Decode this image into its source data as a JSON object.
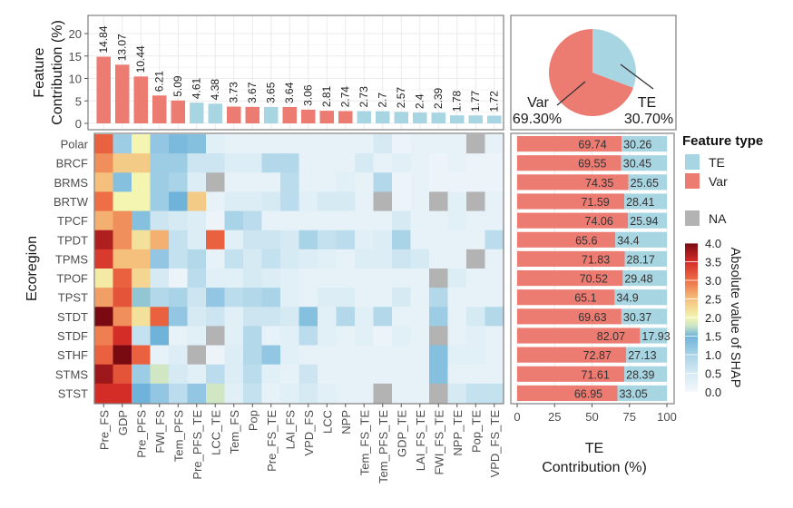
{
  "chart_data": [
    {
      "type": "bar",
      "ylabel": "Feature Contribution (%)",
      "ylabel_lines": [
        "Feature",
        "Contribution (%)"
      ],
      "ylim": [
        0,
        22
      ],
      "yticks": [
        "0",
        "5",
        "10",
        "15",
        "20"
      ],
      "grid": true,
      "categories": [
        "Pre_FS",
        "GDP",
        "Pre_PFS",
        "FWI_FS",
        "Tem_PFS",
        "Pre_PFS_TE",
        "LCC_TE",
        "Tem_FS",
        "Pop",
        "Pre_FS_TE",
        "LAI_FS",
        "VPD_FS",
        "LCC",
        "NPP",
        "Tem_FS_TE",
        "Tem_PFS_TE",
        "GDP_TE",
        "LAI_FS_TE",
        "FWI_FS_TE",
        "NPP_TE",
        "Pop_TE",
        "VPD_FS_TE"
      ],
      "values": [
        14.84,
        13.07,
        10.44,
        6.21,
        5.09,
        4.61,
        4.38,
        3.73,
        3.67,
        3.65,
        3.64,
        3.06,
        2.81,
        2.74,
        2.73,
        2.7,
        2.57,
        2.4,
        2.39,
        1.78,
        1.77,
        1.72
      ],
      "labels": [
        "14.84",
        "13.07",
        "10.44",
        "6.21",
        "5.09",
        "4.61",
        "4.38",
        "3.73",
        "3.67",
        "3.65",
        "3.64",
        "3.06",
        "2.81",
        "2.74",
        "2.73",
        "2.7",
        "2.57",
        "2.4",
        "2.39",
        "1.78",
        "1.77",
        "1.72"
      ],
      "feature_type": [
        "Var",
        "Var",
        "Var",
        "Var",
        "Var",
        "TE",
        "TE",
        "Var",
        "Var",
        "TE",
        "Var",
        "Var",
        "Var",
        "Var",
        "TE",
        "TE",
        "TE",
        "TE",
        "TE",
        "TE",
        "TE",
        "TE"
      ]
    },
    {
      "type": "pie",
      "slices": [
        {
          "name": "TE",
          "value": 30.7,
          "label": "30.70%"
        },
        {
          "name": "Var",
          "value": 69.3,
          "label": "69.30%"
        }
      ]
    },
    {
      "type": "heatmap",
      "ylabel": "Ecoregion",
      "rows": [
        "Polar",
        "BRCF",
        "BRMS",
        "BRTW",
        "TPCF",
        "TPDT",
        "TPMS",
        "TPOF",
        "TPST",
        "STDT",
        "STDF",
        "STHF",
        "STMS",
        "STST"
      ],
      "columns": [
        "Pre_FS",
        "GDP",
        "Pre_PFS",
        "FWI_FS",
        "Tem_PFS",
        "Pre_PFS_TE",
        "LCC_TE",
        "Tem_FS",
        "Pop",
        "Pre_FS_TE",
        "LAI_FS",
        "VPD_FS",
        "LCC",
        "NPP",
        "Tem_FS_TE",
        "Tem_PFS_TE",
        "GDP_TE",
        "LAI_FS_TE",
        "FWI_FS_TE",
        "NPP_TE",
        "Pop_TE",
        "VPD_FS_TE"
      ],
      "values": [
        [
          3.1,
          1.1,
          2.0,
          1.2,
          1.4,
          1.3,
          0.3,
          0.2,
          0.2,
          0.2,
          0.2,
          0.2,
          0.2,
          0.2,
          0.2,
          0.5,
          0.1,
          0.2,
          0.2,
          0.2,
          null,
          0.2
        ],
        [
          2.8,
          2.4,
          2.4,
          1.1,
          1.1,
          0.6,
          0.6,
          0.4,
          0.4,
          0.9,
          0.9,
          0.2,
          0.2,
          0.2,
          0.5,
          0.2,
          0.3,
          0.2,
          0.1,
          0.2,
          0.1,
          0.1
        ],
        [
          2.5,
          1.3,
          2.0,
          1.1,
          1.0,
          0.4,
          null,
          0.2,
          0.2,
          0.2,
          0.8,
          0.2,
          0.2,
          0.3,
          0.2,
          0.9,
          0.1,
          0.2,
          0.1,
          0.1,
          0.1,
          0.1
        ],
        [
          3.0,
          2.0,
          2.0,
          1.1,
          1.5,
          2.4,
          0.2,
          0.4,
          0.4,
          0.5,
          0.8,
          0.3,
          0.5,
          0.5,
          0.2,
          null,
          0.1,
          0.2,
          null,
          0.3,
          null,
          0.2
        ],
        [
          2.6,
          2.8,
          1.3,
          0.6,
          0.5,
          0.4,
          0.1,
          1.0,
          0.8,
          0.2,
          0.2,
          0.2,
          0.2,
          0.2,
          0.2,
          0.2,
          0.5,
          0.2,
          0.2,
          0.3,
          0.2,
          0.2
        ],
        [
          3.7,
          2.8,
          2.2,
          2.6,
          0.7,
          0.4,
          3.1,
          0.3,
          0.6,
          0.6,
          0.5,
          1.0,
          0.7,
          0.8,
          0.3,
          0.4,
          1.0,
          0.2,
          0.2,
          0.2,
          0.2,
          0.8
        ],
        [
          3.4,
          2.5,
          2.5,
          1.2,
          0.7,
          0.9,
          0.2,
          0.7,
          0.5,
          0.7,
          0.5,
          0.4,
          0.3,
          0.2,
          0.4,
          0.4,
          0.6,
          0.5,
          0.2,
          0.2,
          null,
          0.2
        ],
        [
          2.1,
          3.1,
          2.3,
          0.5,
          0.1,
          0.8,
          0.3,
          0.3,
          0.5,
          0.4,
          0.3,
          0.2,
          0.2,
          0.2,
          0.2,
          0.2,
          0.2,
          0.2,
          null,
          0.4,
          0.2,
          0.2
        ],
        [
          2.7,
          3.2,
          1.6,
          0.9,
          1.0,
          0.6,
          1.2,
          0.8,
          0.9,
          1.0,
          0.3,
          0.2,
          0.4,
          0.4,
          0.2,
          0.2,
          0.5,
          0.2,
          0.9,
          0.2,
          0.2,
          0.2
        ],
        [
          4.0,
          2.8,
          2.2,
          3.1,
          1.2,
          0.5,
          0.6,
          0.3,
          0.6,
          0.6,
          0.5,
          1.3,
          0.3,
          0.9,
          0.3,
          0.9,
          0.2,
          0.2,
          1.1,
          0.2,
          0.5,
          0.9
        ],
        [
          2.9,
          3.5,
          0.7,
          1.5,
          0.2,
          0.3,
          null,
          0.3,
          0.9,
          0.2,
          0.3,
          0.8,
          0.3,
          0.2,
          0.3,
          0.1,
          0.3,
          0.2,
          null,
          0.2,
          0.3,
          0.2
        ],
        [
          3.1,
          4.0,
          3.1,
          0.2,
          0.4,
          null,
          0.1,
          0.4,
          0.9,
          1.2,
          0.3,
          0.2,
          0.2,
          0.2,
          0.2,
          0.2,
          0.2,
          0.2,
          1.3,
          0.3,
          0.3,
          0.2
        ],
        [
          3.8,
          3.2,
          1.1,
          1.8,
          0.5,
          0.3,
          0.8,
          0.4,
          0.8,
          0.3,
          0.2,
          0.6,
          0.2,
          0.2,
          0.2,
          0.2,
          0.2,
          0.2,
          1.3,
          0.2,
          0.2,
          0.2
        ],
        [
          3.5,
          3.5,
          1.5,
          1.2,
          0.8,
          1.2,
          1.8,
          0.3,
          0.7,
          0.2,
          0.3,
          0.5,
          0.3,
          0.2,
          0.2,
          null,
          0.2,
          0.2,
          null,
          0.5,
          0.7,
          0.7
        ]
      ],
      "colorbar": {
        "title": "Absolute value of SHAP",
        "range": [
          0,
          4
        ],
        "ticks": [
          "0.0",
          "0.5",
          "1.0",
          "1.5",
          "2.0",
          "2.5",
          "3.0",
          "3.5",
          "4.0"
        ],
        "na_label": "NA",
        "na_color": "#b3b3b3"
      }
    },
    {
      "type": "bar",
      "orientation": "horizontal-stacked",
      "xlabel_lines": [
        "TE",
        "Contribution (%)"
      ],
      "xlim": [
        0,
        100
      ],
      "xticks": [
        "0",
        "25",
        "50",
        "75",
        "100"
      ],
      "categories": [
        "Polar",
        "BRCF",
        "BRMS",
        "BRTW",
        "TPCF",
        "TPDT",
        "TPMS",
        "TPOF",
        "TPST",
        "STDT",
        "STDF",
        "STHF",
        "STMS",
        "STST"
      ],
      "series": [
        {
          "name": "Var",
          "values": [
            69.74,
            69.55,
            74.35,
            71.59,
            74.06,
            65.6,
            71.83,
            70.52,
            65.1,
            69.63,
            82.07,
            72.87,
            71.61,
            66.95
          ]
        },
        {
          "name": "TE",
          "values": [
            30.26,
            30.45,
            25.65,
            28.41,
            25.94,
            34.4,
            28.17,
            29.48,
            34.9,
            30.37,
            17.93,
            27.13,
            28.39,
            33.05
          ]
        }
      ]
    }
  ],
  "legend": {
    "title": "Feature type",
    "items": [
      {
        "name": "TE",
        "color": "#a8d5e2"
      },
      {
        "name": "Var",
        "color": "#ec7b72"
      }
    ]
  },
  "colors": {
    "TE": "#a8d5e2",
    "Var": "#ec7b72"
  }
}
